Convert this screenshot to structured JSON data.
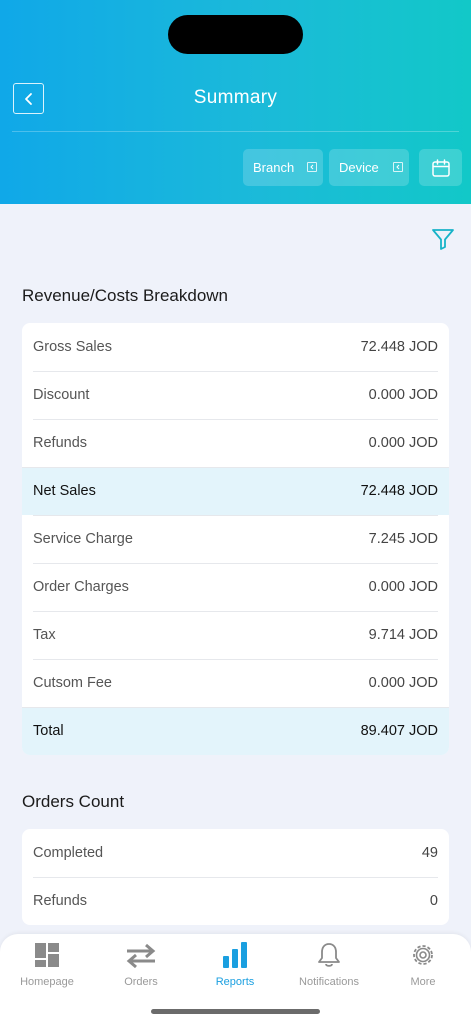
{
  "header": {
    "title": "Summary",
    "branch_label": "Branch",
    "device_label": "Device"
  },
  "revenue": {
    "title": "Revenue/Costs Breakdown",
    "rows": [
      {
        "label": "Gross Sales",
        "value": "72.448 JOD"
      },
      {
        "label": "Discount",
        "value": "0.000 JOD"
      },
      {
        "label": "Refunds",
        "value": "0.000 JOD"
      },
      {
        "label": "Net Sales",
        "value": "72.448 JOD"
      },
      {
        "label": "Service Charge",
        "value": "7.245 JOD"
      },
      {
        "label": "Order Charges",
        "value": "0.000 JOD"
      },
      {
        "label": "Tax",
        "value": "9.714 JOD"
      },
      {
        "label": "Cutsom Fee",
        "value": "0.000 JOD"
      },
      {
        "label": "Total",
        "value": "89.407 JOD"
      }
    ]
  },
  "orders": {
    "title": "Orders Count",
    "rows": [
      {
        "label": "Completed",
        "value": "49"
      },
      {
        "label": "Refunds",
        "value": "0"
      }
    ]
  },
  "tabbar": {
    "tabs": [
      {
        "label": "Homepage",
        "icon": "dashboard-icon"
      },
      {
        "label": "Orders",
        "icon": "swap-arrows-icon"
      },
      {
        "label": "Reports",
        "icon": "bar-chart-icon"
      },
      {
        "label": "Notifications",
        "icon": "bell-icon"
      },
      {
        "label": "More",
        "icon": "gear-icon"
      }
    ],
    "active": "Reports"
  },
  "colors": {
    "accent": "#1a9fe0",
    "header_gradient_start": "#10a8e8",
    "header_gradient_end": "#12c8c8",
    "highlight_row": "#e3f4fb",
    "filter_icon": "#17b3c8"
  }
}
